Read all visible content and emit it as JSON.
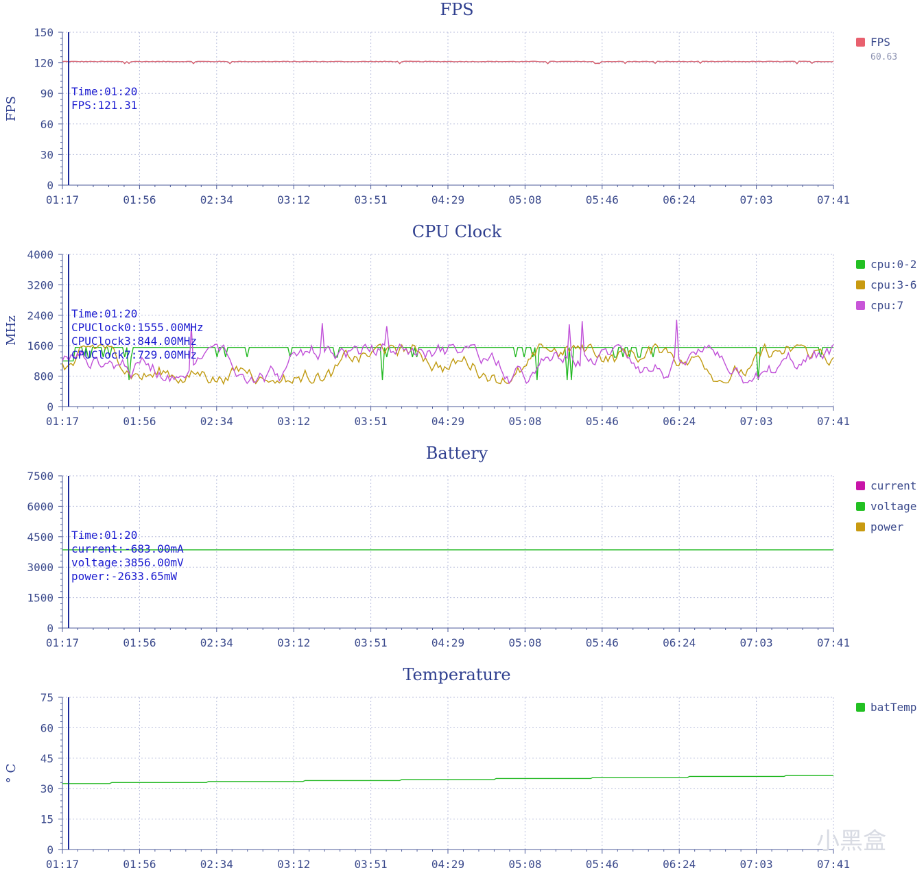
{
  "watermark": "小黑盒",
  "chart_data": [
    {
      "id": "fps",
      "type": "line",
      "title": "FPS",
      "ylabel": "FPS",
      "ylim": [
        0,
        150
      ],
      "yticks": [
        "0",
        "30",
        "60",
        "90",
        "120",
        "150"
      ],
      "xticks": [
        "01:17",
        "01:56",
        "02:34",
        "03:12",
        "03:51",
        "04:29",
        "05:08",
        "05:46",
        "06:24",
        "07:03",
        "07:41"
      ],
      "grid": true,
      "legend_placement": "right",
      "legend": [
        {
          "name": "FPS",
          "color": "#e8606e",
          "sub": "60.63"
        }
      ],
      "cursor": {
        "time_label": "Time:01:20",
        "lines": [
          "FPS:121.31"
        ]
      },
      "series": [
        {
          "name": "FPS",
          "color": "#d25a6a",
          "kind": "fps",
          "base": 121.3
        }
      ]
    },
    {
      "id": "cpu",
      "type": "line",
      "title": "CPU Clock",
      "ylabel": "MHz",
      "ylim": [
        0,
        4000
      ],
      "yticks": [
        "0",
        "800",
        "1600",
        "2400",
        "3200",
        "4000"
      ],
      "xticks": [
        "01:17",
        "01:56",
        "02:34",
        "03:12",
        "03:51",
        "04:29",
        "05:08",
        "05:46",
        "06:24",
        "07:03",
        "07:41"
      ],
      "grid": true,
      "legend_placement": "right",
      "legend": [
        {
          "name": "cpu:0-2",
          "color": "#22c022"
        },
        {
          "name": "cpu:3-6",
          "color": "#c89a10"
        },
        {
          "name": "cpu:7",
          "color": "#c855d8"
        }
      ],
      "cursor": {
        "time_label": "Time:01:20",
        "lines": [
          "CPUClock0:1555.00MHz",
          "CPUClock3:844.00MHz",
          "CPUClock7:729.00MHz"
        ]
      },
      "series": [
        {
          "name": "cpu:0-2",
          "color": "#22b822",
          "kind": "cpu_big",
          "base": 1555
        },
        {
          "name": "cpu:3-6",
          "color": "#c09a10",
          "kind": "cpu_noisy",
          "base": 1150
        },
        {
          "name": "cpu:7",
          "color": "#c050d8",
          "kind": "cpu_noisy2",
          "base": 1150
        }
      ]
    },
    {
      "id": "battery",
      "type": "line",
      "title": "Battery",
      "ylabel": "",
      "ylim": [
        0,
        7500
      ],
      "yticks": [
        "0",
        "1500",
        "3000",
        "4500",
        "6000",
        "7500"
      ],
      "xticks": [
        "01:17",
        "01:56",
        "02:34",
        "03:12",
        "03:51",
        "04:29",
        "05:08",
        "05:46",
        "06:24",
        "07:03",
        "07:41"
      ],
      "grid": true,
      "legend_placement": "right",
      "legend": [
        {
          "name": "current",
          "color": "#c814a8"
        },
        {
          "name": "voltage",
          "color": "#22c022"
        },
        {
          "name": "power",
          "color": "#c89a10"
        }
      ],
      "cursor": {
        "time_label": "Time:01:20",
        "lines": [
          "current:-683.00mA",
          "voltage:3856.00mV",
          "power:-2633.65mW"
        ]
      },
      "series": [
        {
          "name": "voltage",
          "color": "#22b822",
          "kind": "flat",
          "base": 3856
        }
      ]
    },
    {
      "id": "temperature",
      "type": "line",
      "title": "Temperature",
      "ylabel": "° C",
      "ylim": [
        0,
        75
      ],
      "yticks": [
        "0",
        "15",
        "30",
        "45",
        "60",
        "75"
      ],
      "xticks": [
        "01:17",
        "01:56",
        "02:34",
        "03:12",
        "03:51",
        "04:29",
        "05:08",
        "05:46",
        "06:24",
        "07:03",
        "07:41"
      ],
      "grid": true,
      "legend_placement": "right",
      "legend": [
        {
          "name": "batTemp",
          "color": "#22c022"
        }
      ],
      "cursor": null,
      "series": [
        {
          "name": "batTemp",
          "color": "#22b822",
          "kind": "temp",
          "start": 32.5,
          "end": 36.5
        }
      ]
    }
  ]
}
